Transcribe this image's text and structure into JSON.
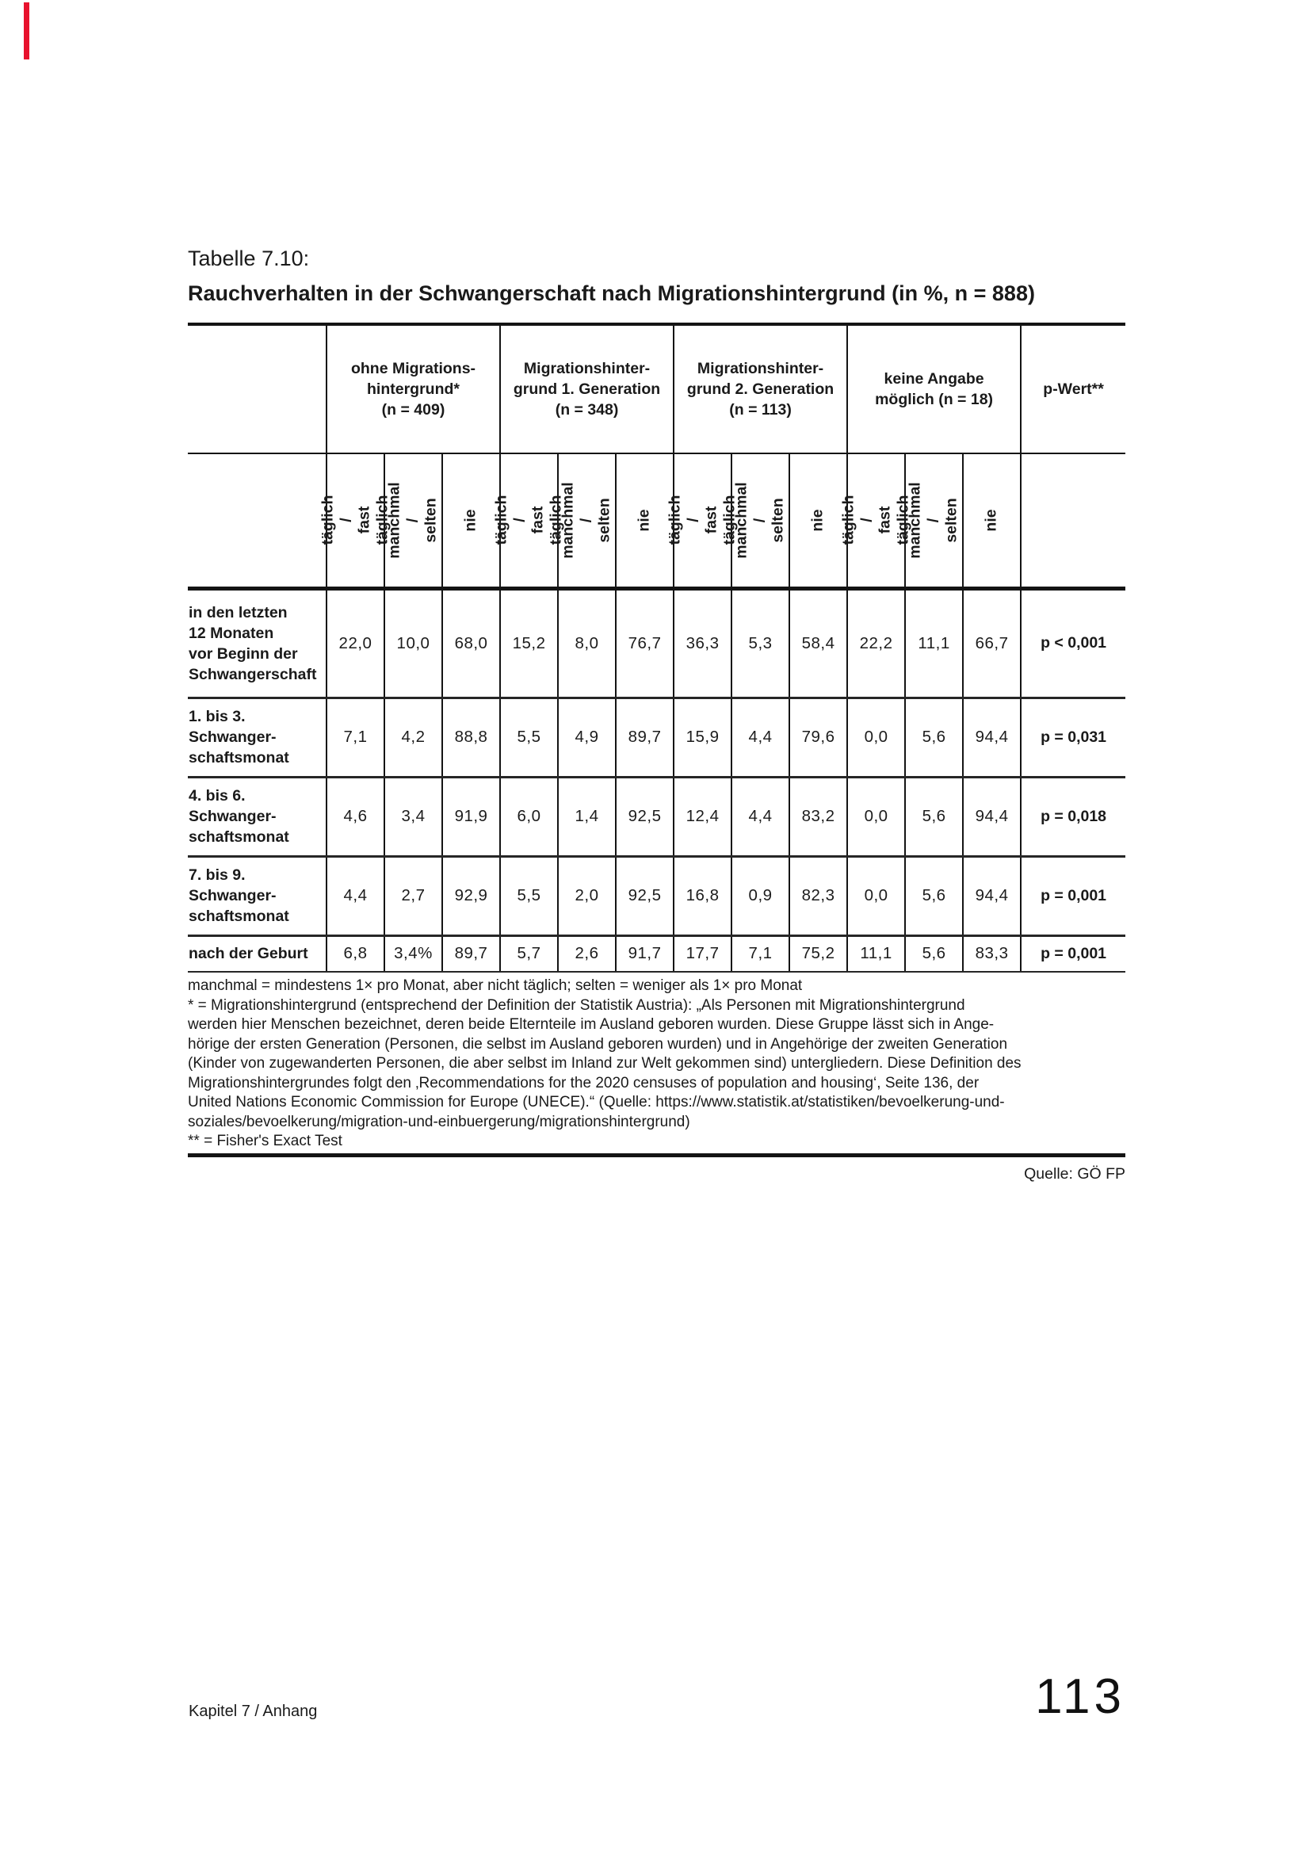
{
  "page": {
    "accent_red": "#e8112d",
    "footer_left": "Kapitel 7 / Anhang",
    "page_number": "113",
    "source_note": "Quelle: GÖ FP"
  },
  "title": {
    "line1": "Tabelle 7.10:",
    "line2": "Rauchverhalten in der Schwangerschaft nach Migrationshintergrund (in %, n = 888)"
  },
  "table": {
    "groups": [
      {
        "lines": "ohne Migrations-\nhintergrund*\n(n = 409)"
      },
      {
        "lines": "Migrationshinter-\ngrund 1. Generation\n(n = 348)"
      },
      {
        "lines": "Migrationshinter-\ngrund 2. Generation\n(n = 113)"
      },
      {
        "lines": "keine Angabe\nmöglich (n = 18)"
      }
    ],
    "p_header": "p-Wert**",
    "subheaders": [
      {
        "text": "täglich /\nfast täglich"
      },
      {
        "text": "manchmal /\nselten"
      },
      {
        "text": "nie"
      }
    ],
    "rows": [
      {
        "label": "in den letzten\n12 Monaten\nvor Beginn der\nSchwangerschaft",
        "values": [
          "22,0",
          "10,0",
          "68,0",
          "15,2",
          "8,0",
          "76,7",
          "36,3",
          "5,3",
          "58,4",
          "22,2",
          "11,1",
          "66,7"
        ],
        "p": "p < 0,001"
      },
      {
        "label": "1. bis 3.\nSchwanger-\nschaftsmonat",
        "values": [
          "7,1",
          "4,2",
          "88,8",
          "5,5",
          "4,9",
          "89,7",
          "15,9",
          "4,4",
          "79,6",
          "0,0",
          "5,6",
          "94,4"
        ],
        "p": "p = 0,031"
      },
      {
        "label": "4. bis 6.\nSchwanger-\nschaftsmonat",
        "values": [
          "4,6",
          "3,4",
          "91,9",
          "6,0",
          "1,4",
          "92,5",
          "12,4",
          "4,4",
          "83,2",
          "0,0",
          "5,6",
          "94,4"
        ],
        "p": "p = 0,018"
      },
      {
        "label": "7. bis 9.\nSchwanger-\nschaftsmonat",
        "values": [
          "4,4",
          "2,7",
          "92,9",
          "5,5",
          "2,0",
          "92,5",
          "16,8",
          "0,9",
          "82,3",
          "0,0",
          "5,6",
          "94,4"
        ],
        "p": "p = 0,001"
      },
      {
        "label": "nach der Geburt",
        "values": [
          "6,8",
          "3,4%",
          "89,7",
          "5,7",
          "2,6",
          "91,7",
          "17,7",
          "7,1",
          "75,2",
          "11,1",
          "5,6",
          "83,3"
        ],
        "p": "p = 0,001"
      }
    ]
  },
  "footnotes": {
    "text": "manchmal = mindestens 1× pro Monat, aber nicht täglich; selten = weniger als 1× pro Monat\n* = Migrationshintergrund (entsprechend der Definition der Statistik Austria): „Als Personen mit Migrationshintergrund\nwerden hier Menschen bezeichnet, deren beide Elternteile im Ausland geboren wurden. Diese Gruppe lässt sich in Ange-\nhörige der ersten Generation (Personen, die selbst im Ausland geboren wurden) und in Angehörige der zweiten Generation\n(Kinder von zugewanderten Personen, die aber selbst im Inland zur Welt gekommen sind) untergliedern. Diese Definition des\nMigrationshintergrundes folgt den ‚Recommendations for the 2020 censuses of population and housing‘, Seite 136, der\nUnited Nations Economic Commission for Europe (UNECE).“ (Quelle: https://www.statistik.at/statistiken/bevoelkerung-und-\nsoziales/bevoelkerung/migration-und-einbuergerung/migrationshintergrund)\n** = Fisher's Exact Test"
  }
}
